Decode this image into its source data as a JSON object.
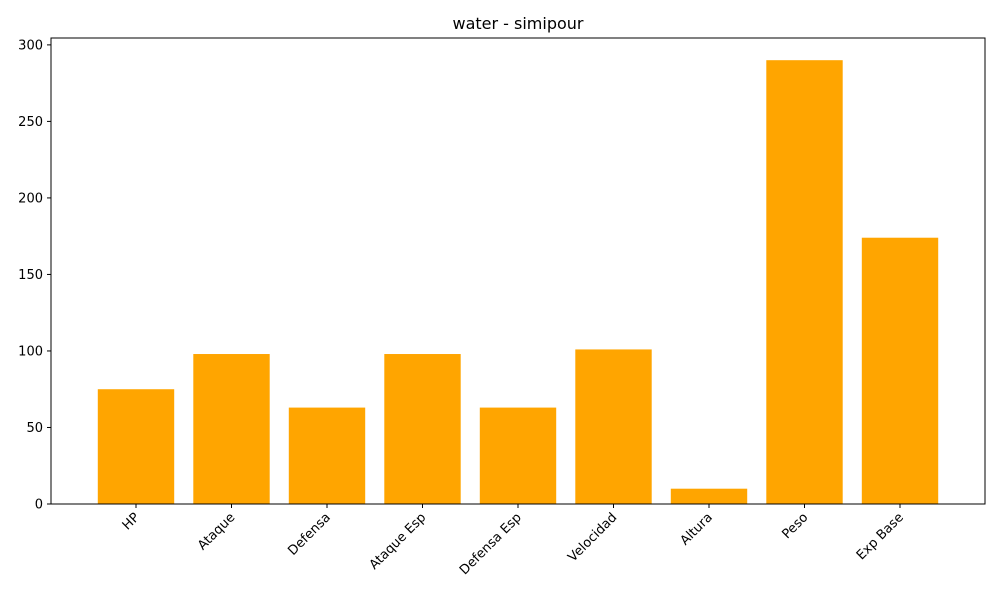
{
  "chart_data": {
    "type": "bar",
    "title": "water - simipour",
    "xlabel": "",
    "ylabel": "",
    "categories": [
      "HP",
      "Ataque",
      "Defensa",
      "Ataque Esp",
      "Defensa Esp",
      "Velocidad",
      "Altura",
      "Peso",
      "Exp Base"
    ],
    "values": [
      75,
      98,
      63,
      98,
      63,
      101,
      10,
      290,
      174
    ],
    "ylim": [
      0,
      304.5
    ],
    "yticks": [
      0,
      50,
      100,
      150,
      200,
      250,
      300
    ],
    "bar_color": "#FFA500",
    "grid": false,
    "legend": false
  }
}
